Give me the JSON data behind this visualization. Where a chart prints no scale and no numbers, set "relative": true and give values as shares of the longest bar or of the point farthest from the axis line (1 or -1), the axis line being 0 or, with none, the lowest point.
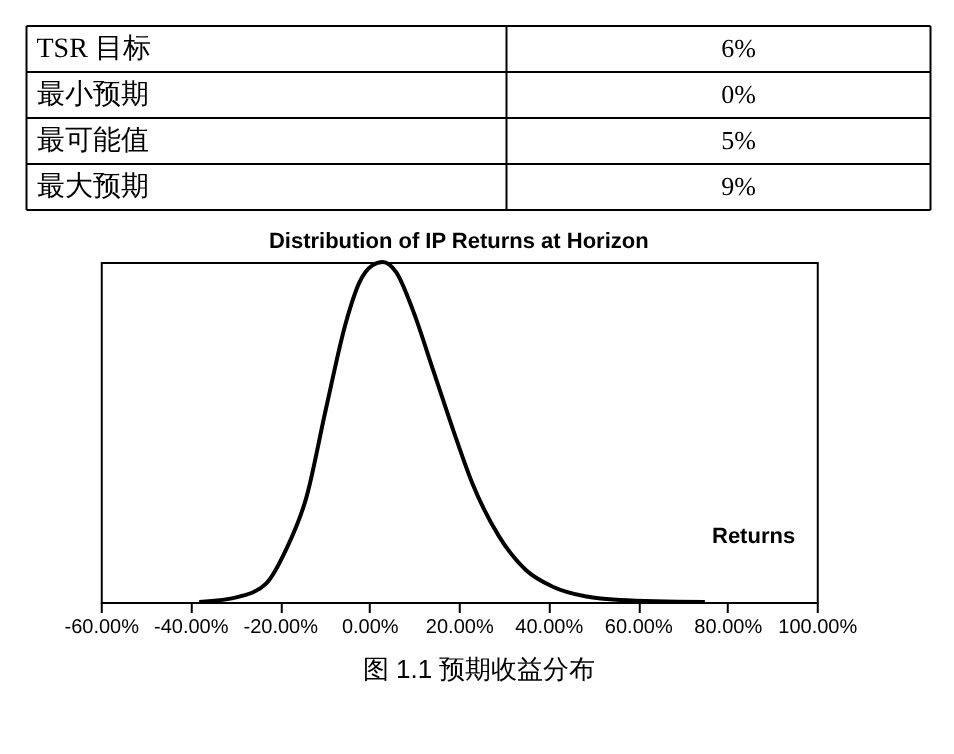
{
  "chart_data": {
    "type": "line",
    "title": "Distribution of IP Returns at Horizon",
    "relative": true,
    "x": [
      -38,
      -29,
      -23,
      -18.6,
      -14,
      -9.7,
      -5.2,
      -2.2,
      0.7,
      3,
      6,
      9.7,
      14.2,
      18.7,
      23,
      29,
      35,
      41,
      48.5,
      56,
      75
    ],
    "series": [
      {
        "name": "Returns",
        "color": "#000000",
        "values": [
          0,
          0.016,
          0.055,
          0.154,
          0.31,
          0.567,
          0.823,
          0.94,
          0.99,
          1,
          0.97,
          0.86,
          0.685,
          0.508,
          0.35,
          0.193,
          0.094,
          0.045,
          0.016,
          0.006,
          0
        ]
      }
    ],
    "xlim": [
      -60,
      100
    ],
    "xticks": [
      {
        "value": -60,
        "label": "-60.00%"
      },
      {
        "value": -40,
        "label": "-40.00%"
      },
      {
        "value": -20,
        "label": "-20.00%"
      },
      {
        "value": 0,
        "label": "0.00%"
      },
      {
        "value": 20,
        "label": "20.00%"
      },
      {
        "value": 40,
        "label": "40.00%"
      },
      {
        "value": 60,
        "label": "60.00%"
      },
      {
        "value": 80,
        "label": "80.00%"
      },
      {
        "value": 100,
        "label": "100.00%"
      }
    ],
    "grid": false,
    "legend": "right",
    "marker": "none",
    "line_style": "solid",
    "annotations": [
      "TSR 目标",
      "6%",
      "最小预期",
      "0%",
      "最可能值",
      "5%",
      "最大预期",
      "9%",
      "图 1.1    预期收益分布"
    ]
  }
}
